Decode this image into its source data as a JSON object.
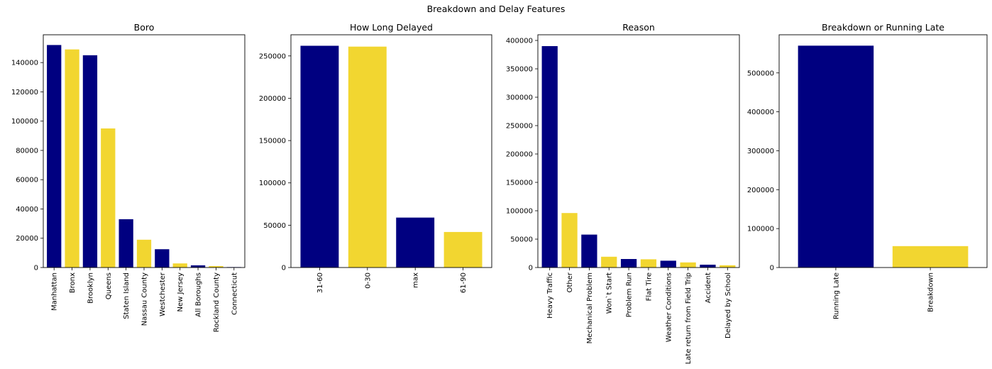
{
  "figure": {
    "suptitle": "Breakdown and Delay Features"
  },
  "colors": {
    "navy": "#000080",
    "yellow": "#f2d630",
    "axis": "#000000",
    "background": "#ffffff"
  },
  "chart_data": [
    {
      "type": "bar",
      "title": "Boro",
      "categories": [
        "Manhattan",
        "Bronx",
        "Brooklyn",
        "Queens",
        "Staten Island",
        "Nassau County",
        "Westchester",
        "New Jersey",
        "All Boroughs",
        "Rockland County",
        "Connecticut"
      ],
      "values": [
        152000,
        149000,
        145000,
        95000,
        33000,
        19000,
        12500,
        2800,
        1500,
        1000,
        300
      ],
      "ylim": [
        0,
        159000
      ],
      "yticks": [
        0,
        20000,
        40000,
        60000,
        80000,
        100000,
        120000,
        140000
      ],
      "xlabel": "",
      "ylabel": "",
      "grid": false
    },
    {
      "type": "bar",
      "title": "How Long Delayed",
      "categories": [
        "31-60",
        "0-30",
        "max",
        "61-90"
      ],
      "values": [
        262000,
        261000,
        59000,
        42000
      ],
      "ylim": [
        0,
        275000
      ],
      "yticks": [
        0,
        50000,
        100000,
        150000,
        200000,
        250000
      ],
      "xlabel": "",
      "ylabel": "",
      "grid": false
    },
    {
      "type": "bar",
      "title": "Reason",
      "categories": [
        "Heavy Traffic",
        "Other",
        "Mechanical Problem",
        "Won`t Start",
        "Problem Run",
        "Flat Tire",
        "Weather Conditions",
        "Late return from Field Trip",
        "Accident",
        "Delayed by School"
      ],
      "values": [
        390000,
        96000,
        58000,
        19000,
        15000,
        14500,
        12000,
        9000,
        5000,
        4000
      ],
      "ylim": [
        0,
        410000
      ],
      "yticks": [
        0,
        50000,
        100000,
        150000,
        200000,
        250000,
        300000,
        350000,
        400000
      ],
      "xlabel": "",
      "ylabel": "",
      "grid": false
    },
    {
      "type": "bar",
      "title": "Breakdown or Running Late",
      "categories": [
        "Running Late",
        "Breakdown"
      ],
      "values": [
        570000,
        55000
      ],
      "ylim": [
        0,
        598000
      ],
      "yticks": [
        0,
        100000,
        200000,
        300000,
        400000,
        500000
      ],
      "xlabel": "",
      "ylabel": "",
      "grid": false
    }
  ]
}
